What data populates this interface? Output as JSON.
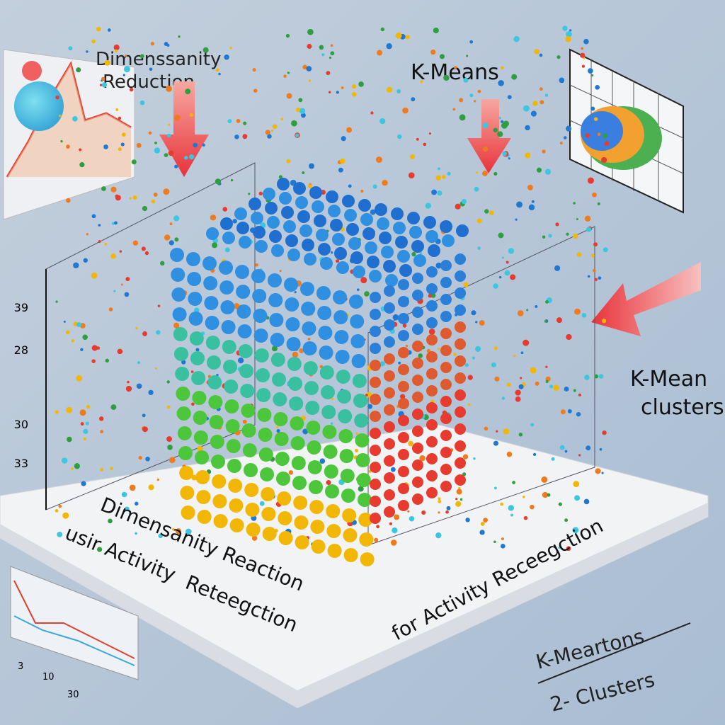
{
  "header": {
    "left_title": [
      "Dimenssanity",
      "Reduction"
    ],
    "center_title": "K-Means",
    "right_title": [
      "K-Mean",
      "clusters"
    ]
  },
  "axis_labels": [
    "39",
    "28",
    "30",
    "33"
  ],
  "platform": {
    "left_text": [
      "Dimensanity Reaction",
      "usir Activity",
      "Reteegction"
    ],
    "right_text": [
      "for Activity Receegction"
    ]
  },
  "bottom_right": [
    "K-Meartons",
    "2- Clusters"
  ],
  "bottom_left_ticks": [
    "3",
    "10",
    "30"
  ]
}
